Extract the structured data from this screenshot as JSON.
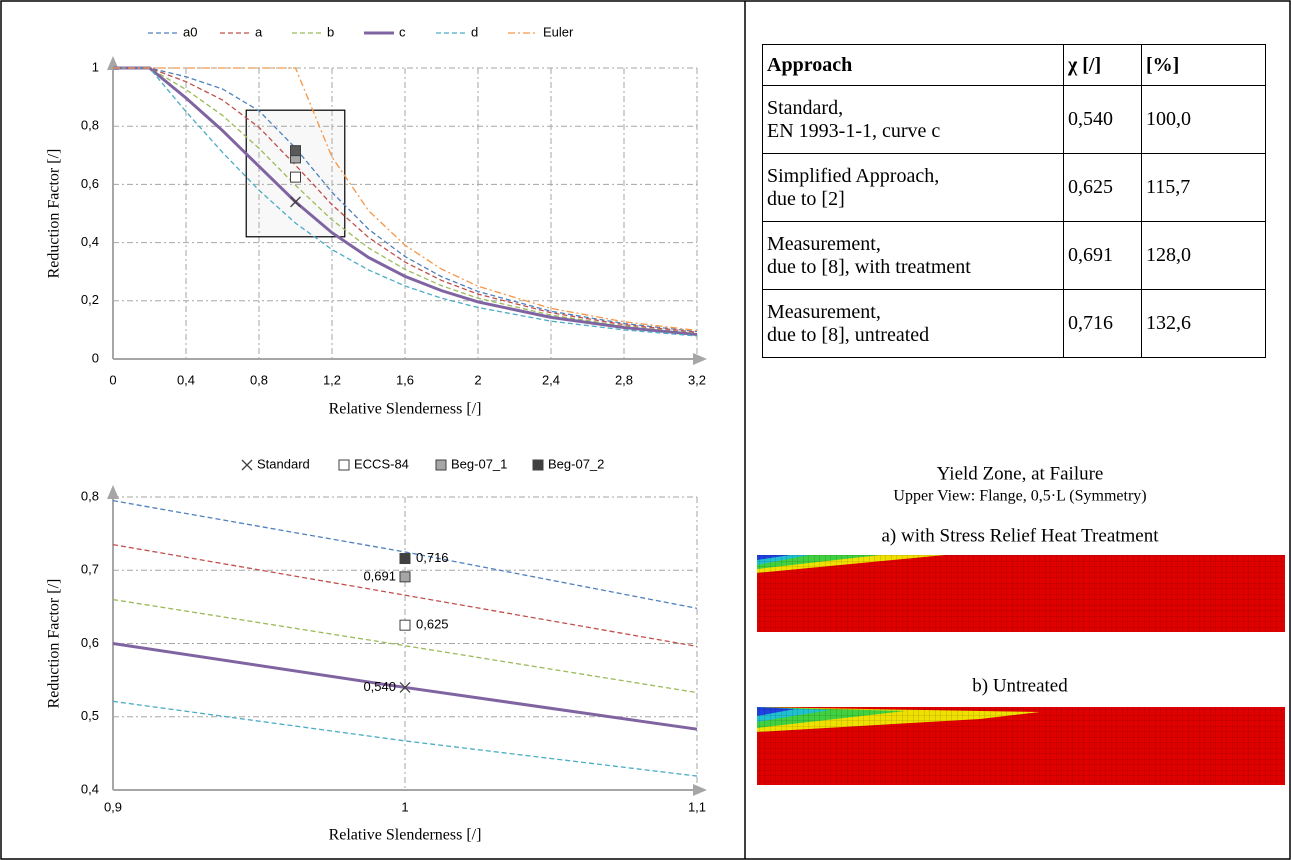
{
  "chart_data": [
    {
      "type": "line",
      "xlabel": "Relative Slenderness [/]",
      "ylabel": "Reduction Factor [/]",
      "x": [
        0,
        0.2,
        0.4,
        0.6,
        0.8,
        1,
        1.2,
        1.4,
        1.6,
        1.8,
        2,
        2.4,
        2.8,
        3.2
      ],
      "series": [
        {
          "name": "a0",
          "color": "#4f81bd",
          "style": "dashed",
          "values": [
            1,
            1,
            0.97,
            0.928,
            0.853,
            0.725,
            0.573,
            0.446,
            0.352,
            0.283,
            0.232,
            0.164,
            0.122,
            0.094
          ]
        },
        {
          "name": "a",
          "color": "#c0504d",
          "style": "dashed",
          "values": [
            1,
            1,
            0.953,
            0.89,
            0.796,
            0.666,
            0.53,
            0.418,
            0.333,
            0.27,
            0.223,
            0.159,
            0.118,
            0.092
          ]
        },
        {
          "name": "b",
          "color": "#9bbb59",
          "style": "dashed",
          "values": [
            1,
            1,
            0.926,
            0.837,
            0.724,
            0.597,
            0.478,
            0.382,
            0.308,
            0.252,
            0.209,
            0.151,
            0.113,
            0.088
          ]
        },
        {
          "name": "c",
          "color": "#8064a2",
          "style": "solid",
          "values": [
            1,
            1,
            0.897,
            0.785,
            0.662,
            0.54,
            0.434,
            0.349,
            0.284,
            0.235,
            0.196,
            0.143,
            0.108,
            0.084
          ]
        },
        {
          "name": "d",
          "color": "#4bacc6",
          "style": "dashed",
          "values": [
            1,
            1,
            0.85,
            0.71,
            0.58,
            0.467,
            0.376,
            0.306,
            0.251,
            0.209,
            0.177,
            0.13,
            0.1,
            0.079
          ]
        },
        {
          "name": "Euler",
          "color": "#f79646",
          "style": "dashdot",
          "values": [
            1,
            1,
            1,
            1,
            1,
            1,
            0.694,
            0.51,
            0.391,
            0.309,
            0.25,
            0.174,
            0.128,
            0.098
          ]
        }
      ],
      "points": {
        "x": [
          1,
          1,
          1,
          1
        ],
        "values": [
          0.54,
          0.625,
          0.691,
          0.716
        ],
        "markers": [
          "cross",
          "square",
          "square",
          "square"
        ],
        "colors": [
          "#404040",
          "#ffffff",
          "#a6a6a6",
          "#595959"
        ]
      },
      "highlight": {
        "x": [
          0.73,
          1.27
        ],
        "y": [
          0.42,
          0.855
        ]
      },
      "xlim": [
        0,
        3.2
      ],
      "ylim": [
        0,
        1
      ],
      "xticks": [
        0,
        {
          "value": 0.4,
          "label": "0,4"
        },
        {
          "value": 0.8,
          "label": "0,8"
        },
        {
          "value": 1.2,
          "label": "1,2"
        },
        {
          "value": 1.6,
          "label": "1,6"
        },
        2,
        {
          "value": 2.4,
          "label": "2,4"
        },
        {
          "value": 2.8,
          "label": "2,8"
        },
        {
          "value": 3.2,
          "label": "3,2"
        }
      ],
      "yticks": [
        0,
        {
          "value": 0.2,
          "label": "0,2"
        },
        {
          "value": 0.4,
          "label": "0,4"
        },
        {
          "value": 0.6,
          "label": "0,6"
        },
        {
          "value": 0.8,
          "label": "0,8"
        },
        1
      ],
      "grid": true,
      "legend": "top"
    },
    {
      "type": "scatter",
      "xlabel": "Relative Slenderness [/]",
      "ylabel": "Reduction Factor [/]",
      "series": [
        {
          "name": "Standard",
          "marker": "cross",
          "color": "#404040",
          "x": [
            1
          ],
          "values": [
            0.54
          ],
          "value_labels": [
            "0,540"
          ]
        },
        {
          "name": "ECCS-84",
          "marker": "square",
          "color": "#ffffff",
          "x": [
            1
          ],
          "values": [
            0.625
          ],
          "value_labels": [
            "0,625"
          ]
        },
        {
          "name": "Beg-07_1",
          "marker": "square",
          "color": "#a6a6a6",
          "x": [
            1
          ],
          "values": [
            0.691
          ],
          "value_labels": [
            "0,691"
          ]
        },
        {
          "name": "Beg-07_2",
          "marker": "square",
          "color": "#404040",
          "x": [
            1
          ],
          "values": [
            0.716
          ],
          "value_labels": [
            "0,716"
          ]
        }
      ],
      "curves": [
        {
          "color": "#4f81bd",
          "style": "dashed",
          "x": [
            0.9,
            1,
            1.1
          ],
          "values": [
            0.795,
            0.725,
            0.648
          ]
        },
        {
          "color": "#c0504d",
          "style": "dashed",
          "x": [
            0.9,
            1,
            1.1
          ],
          "values": [
            0.735,
            0.666,
            0.596
          ]
        },
        {
          "color": "#9bbb59",
          "style": "dashed",
          "x": [
            0.9,
            1,
            1.1
          ],
          "values": [
            0.66,
            0.597,
            0.533
          ]
        },
        {
          "color": "#8064a2",
          "style": "solid",
          "x": [
            0.9,
            1,
            1.1
          ],
          "values": [
            0.6,
            0.54,
            0.483
          ]
        },
        {
          "color": "#4bacc6",
          "style": "dashed",
          "x": [
            0.9,
            1,
            1.1
          ],
          "values": [
            0.521,
            0.467,
            0.419
          ]
        }
      ],
      "xlim": [
        0.9,
        1.1
      ],
      "ylim": [
        0.4,
        0.8
      ],
      "xticks": [
        {
          "value": 0.9,
          "label": "0,9"
        },
        1,
        {
          "value": 1.1,
          "label": "1,1"
        }
      ],
      "yticks": [
        {
          "value": 0.4,
          "label": "0,4"
        },
        {
          "value": 0.5,
          "label": "0,5"
        },
        {
          "value": 0.6,
          "label": "0,6"
        },
        {
          "value": 0.7,
          "label": "0,7"
        },
        {
          "value": 0.8,
          "label": "0,8"
        }
      ],
      "grid": true,
      "legend": "top"
    }
  ],
  "table": {
    "header": [
      "Approach",
      "χ [/]",
      "[%]"
    ],
    "rows": [
      [
        "Standard,\nEN 1993-1-1, curve c",
        "0,540",
        "100,0"
      ],
      [
        "Simplified Approach,\ndue to [2]",
        "0,625",
        "115,7"
      ],
      [
        "Measurement,\ndue to [8], with treatment",
        "0,691",
        "128,0"
      ],
      [
        "Measurement,\ndue to [8], untreated",
        "0,716",
        "132,6"
      ]
    ]
  },
  "panel": {
    "title": "Yield Zone, at Failure",
    "subtitle": "Upper View: Flange, 0,5·L (Symmetry)",
    "caption_a": "a) with Stress Relief Heat Treatment",
    "caption_b": "b) Untreated"
  }
}
